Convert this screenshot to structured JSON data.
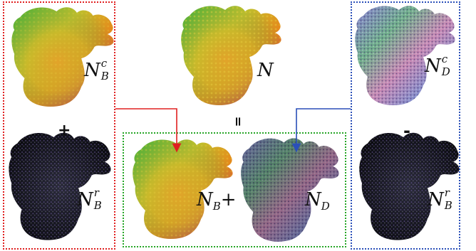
{
  "colors": {
    "red_box": "#e02020",
    "blue_box": "#2a4fb8",
    "green_box": "#26a626",
    "red_arrow": "#e02020",
    "blue_arrow": "#2a4fb8"
  },
  "labels": {
    "nbc_base": "N",
    "nbc_sup": "c",
    "nbc_sub": "B",
    "n": "N",
    "ndc_base": "N",
    "ndc_sup": "c",
    "ndc_sub": "D",
    "nbr_left_base": "N",
    "nbr_left_sup": "r",
    "nbr_left_sub": "B",
    "nb_plus_base": "N",
    "nb_plus_sub": "B",
    "nb_plus_op": "+",
    "nd_base": "N",
    "nd_sub": "D",
    "nbr_right_base": "N",
    "nbr_right_sup": "r",
    "nbr_right_sub": "B"
  },
  "operators": {
    "plus": "+",
    "equals": "=",
    "minus": "-"
  },
  "icons": {
    "render": "gargoyle-normal-map-render"
  }
}
